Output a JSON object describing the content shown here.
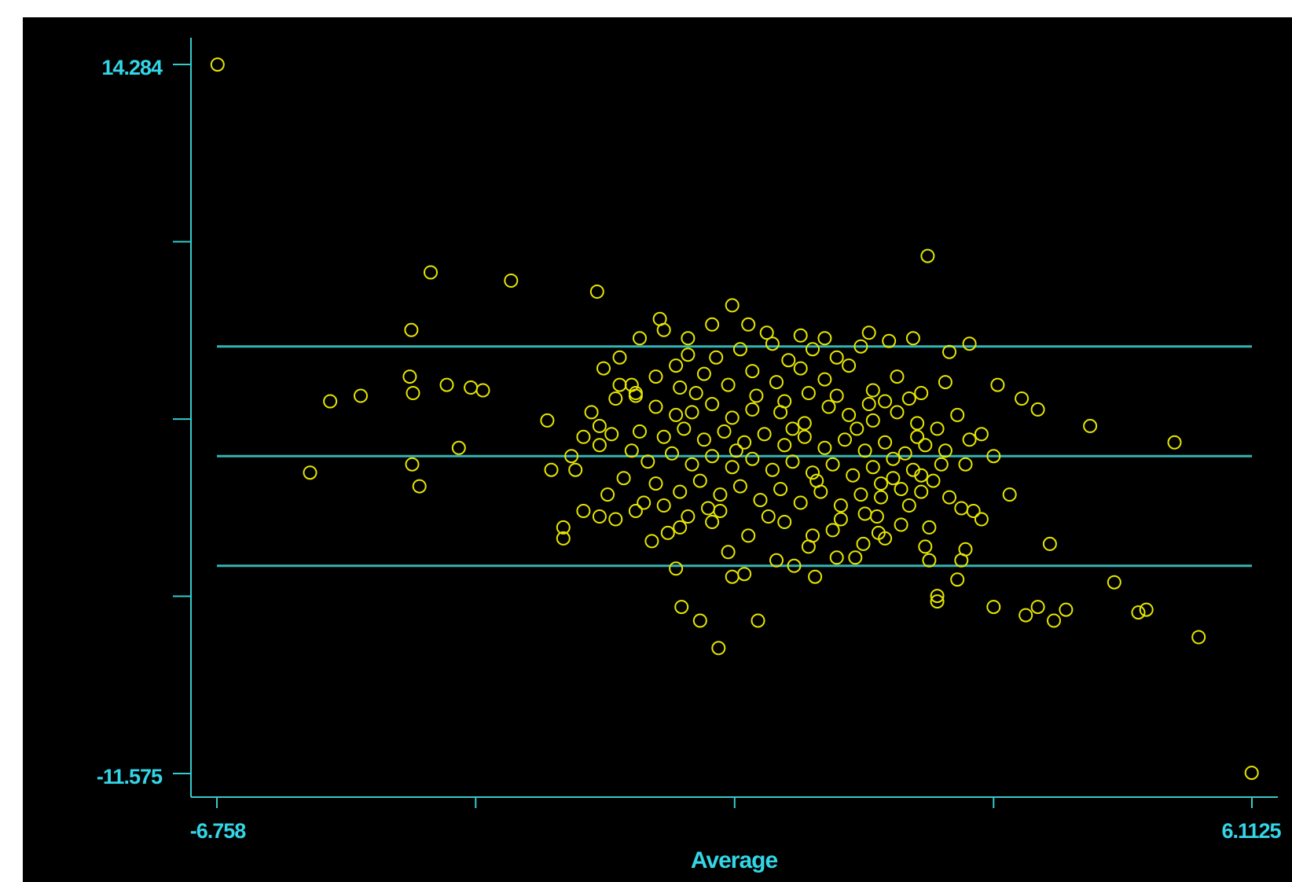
{
  "chart_data": {
    "type": "scatter",
    "title": "",
    "xlabel": "Average",
    "ylabel": "",
    "xlim": [
      -6.758,
      6.1125
    ],
    "ylim": [
      -11.575,
      14.284
    ],
    "x_tick_labels": [
      "-6.758",
      "6.1125"
    ],
    "y_tick_labels": [
      "14.284",
      "-11.575"
    ],
    "x_ticks": [
      -6.758,
      -3.54,
      -0.32,
      2.9,
      6.1125
    ],
    "y_ticks": [
      14.284,
      7.82,
      1.35,
      -5.11,
      -11.575
    ],
    "grid": false,
    "reference_lines": [
      {
        "name": "upper",
        "y": 4.0
      },
      {
        "name": "mean",
        "y": 0.0
      },
      {
        "name": "lower",
        "y": -4.0
      }
    ],
    "colors": {
      "background": "#000000",
      "axis": "#33cccc",
      "points": "#e6e600",
      "text": "#33d6e6"
    },
    "outliers": [
      {
        "x": -6.75,
        "y": 14.28
      },
      {
        "x": 6.11,
        "y": -11.55
      },
      {
        "x": 2.08,
        "y": 7.3
      }
    ],
    "points": [
      {
        "x": -4.1,
        "y": 6.7
      },
      {
        "x": -3.1,
        "y": 6.4
      },
      {
        "x": -4.34,
        "y": 4.6
      },
      {
        "x": -5.35,
        "y": 2.0
      },
      {
        "x": -4.97,
        "y": 2.2
      },
      {
        "x": -4.36,
        "y": 2.9
      },
      {
        "x": -4.32,
        "y": 2.3
      },
      {
        "x": -3.9,
        "y": 2.6
      },
      {
        "x": -3.6,
        "y": 2.5
      },
      {
        "x": -3.45,
        "y": 2.4
      },
      {
        "x": -3.75,
        "y": 0.3
      },
      {
        "x": -5.6,
        "y": -0.6
      },
      {
        "x": -4.33,
        "y": -0.3
      },
      {
        "x": -4.24,
        "y": -1.1
      },
      {
        "x": -2.03,
        "y": 6.0
      },
      {
        "x": -2.65,
        "y": 1.3
      },
      {
        "x": -2.0,
        "y": 1.1
      },
      {
        "x": -2.0,
        "y": 0.4
      },
      {
        "x": -1.8,
        "y": 2.1
      },
      {
        "x": -1.75,
        "y": 3.6
      },
      {
        "x": -1.95,
        "y": 3.2
      },
      {
        "x": -1.55,
        "y": 2.2
      },
      {
        "x": -2.35,
        "y": 0.0
      },
      {
        "x": -2.3,
        "y": -0.5
      },
      {
        "x": -1.75,
        "y": 2.6
      },
      {
        "x": -1.55,
        "y": 2.3
      },
      {
        "x": -2.1,
        "y": 1.6
      },
      {
        "x": -0.35,
        "y": 5.5
      },
      {
        "x": 0.15,
        "y": 4.1
      },
      {
        "x": 0.08,
        "y": 4.5
      },
      {
        "x": 0.5,
        "y": 4.4
      },
      {
        "x": 0.8,
        "y": 4.3
      },
      {
        "x": 1.35,
        "y": 4.5
      },
      {
        "x": 1.6,
        "y": 4.2
      },
      {
        "x": 1.9,
        "y": 4.3
      },
      {
        "x": 2.6,
        "y": 4.1
      },
      {
        "x": -0.6,
        "y": 4.8
      },
      {
        "x": -1.5,
        "y": 4.3
      },
      {
        "x": -0.15,
        "y": 4.8
      },
      {
        "x": -1.2,
        "y": 4.6
      },
      {
        "x": -1.25,
        "y": 5.0
      },
      {
        "x": -0.9,
        "y": 4.3
      },
      {
        "x": 2.35,
        "y": 3.8
      },
      {
        "x": 2.95,
        "y": 2.6
      },
      {
        "x": 3.25,
        "y": 2.1
      },
      {
        "x": 3.45,
        "y": 1.7
      },
      {
        "x": 4.1,
        "y": 1.1
      },
      {
        "x": 5.15,
        "y": 0.5
      },
      {
        "x": 2.75,
        "y": 0.8
      },
      {
        "x": 2.9,
        "y": 0.0
      },
      {
        "x": 3.1,
        "y": -1.4
      },
      {
        "x": 3.6,
        "y": -3.2
      },
      {
        "x": 4.4,
        "y": -4.6
      },
      {
        "x": 4.7,
        "y": -5.7
      },
      {
        "x": 5.45,
        "y": -6.6
      },
      {
        "x": 4.8,
        "y": -5.6
      },
      {
        "x": 3.8,
        "y": -5.6
      },
      {
        "x": 3.65,
        "y": -6.0
      },
      {
        "x": 3.45,
        "y": -5.5
      },
      {
        "x": 3.3,
        "y": -5.8
      },
      {
        "x": 2.9,
        "y": -5.5
      },
      {
        "x": 2.2,
        "y": -5.1
      },
      {
        "x": 2.2,
        "y": -5.3
      },
      {
        "x": 2.45,
        "y": -4.5
      },
      {
        "x": 2.1,
        "y": -3.8
      },
      {
        "x": 2.05,
        "y": -3.3
      },
      {
        "x": 2.55,
        "y": -3.4
      },
      {
        "x": 2.5,
        "y": -3.8
      },
      {
        "x": 2.75,
        "y": -2.3
      },
      {
        "x": -0.98,
        "y": -5.5
      },
      {
        "x": -0.75,
        "y": -6.0
      },
      {
        "x": -0.52,
        "y": -7.0
      },
      {
        "x": -0.03,
        "y": -6.0
      },
      {
        "x": -1.05,
        "y": -4.1
      },
      {
        "x": -0.35,
        "y": -4.4
      },
      {
        "x": -0.2,
        "y": -4.3
      },
      {
        "x": 0.2,
        "y": -3.8
      },
      {
        "x": 0.42,
        "y": -4.0
      },
      {
        "x": 0.68,
        "y": -4.4
      },
      {
        "x": 1.18,
        "y": -3.7
      },
      {
        "x": 1.47,
        "y": -2.8
      },
      {
        "x": 1.28,
        "y": -3.2
      },
      {
        "x": 1.55,
        "y": -3.0
      },
      {
        "x": 0.95,
        "y": -3.7
      },
      {
        "x": -0.4,
        "y": -3.5
      },
      {
        "x": 0.6,
        "y": -3.3
      },
      {
        "x": -1.35,
        "y": -3.1
      },
      {
        "x": -1.8,
        "y": -2.3
      },
      {
        "x": -2.0,
        "y": -2.2
      },
      {
        "x": -2.2,
        "y": -2.0
      },
      {
        "x": -2.45,
        "y": -2.6
      },
      {
        "x": -2.45,
        "y": -3.0
      },
      {
        "x": -1.55,
        "y": -2.0
      },
      {
        "x": -1.0,
        "y": -2.6
      },
      {
        "x": -0.6,
        "y": -2.4
      },
      {
        "x": -0.9,
        "y": -2.2
      },
      {
        "x": -0.5,
        "y": -2.0
      },
      {
        "x": 0.3,
        "y": -2.4
      },
      {
        "x": 0.9,
        "y": -2.7
      },
      {
        "x": 1.45,
        "y": -2.2
      },
      {
        "x": 1.75,
        "y": -2.5
      },
      {
        "x": 2.1,
        "y": -2.6
      },
      {
        "x": 1.5,
        "y": -1.5
      },
      {
        "x": 1.85,
        "y": -1.8
      },
      {
        "x": 2.0,
        "y": -1.3
      },
      {
        "x": 2.35,
        "y": -1.5
      },
      {
        "x": 2.5,
        "y": -1.9
      },
      {
        "x": 2.65,
        "y": -2.0
      },
      {
        "x": -1.3,
        "y": 1.8
      },
      {
        "x": -1.05,
        "y": 1.5
      },
      {
        "x": -0.85,
        "y": 1.6
      },
      {
        "x": -0.6,
        "y": 1.9
      },
      {
        "x": -0.35,
        "y": 1.4
      },
      {
        "x": -0.1,
        "y": 1.7
      },
      {
        "x": 0.25,
        "y": 1.6
      },
      {
        "x": 0.55,
        "y": 1.2
      },
      {
        "x": 0.85,
        "y": 1.8
      },
      {
        "x": 1.1,
        "y": 1.5
      },
      {
        "x": 1.4,
        "y": 1.3
      },
      {
        "x": 1.7,
        "y": 1.6
      },
      {
        "x": 1.95,
        "y": 1.2
      },
      {
        "x": 2.2,
        "y": 1.0
      },
      {
        "x": -1.5,
        "y": 0.9
      },
      {
        "x": -1.2,
        "y": 0.7
      },
      {
        "x": -0.95,
        "y": 1.0
      },
      {
        "x": -0.7,
        "y": 0.6
      },
      {
        "x": -0.45,
        "y": 0.9
      },
      {
        "x": -0.2,
        "y": 0.5
      },
      {
        "x": 0.05,
        "y": 0.8
      },
      {
        "x": 0.3,
        "y": 0.4
      },
      {
        "x": 0.55,
        "y": 0.7
      },
      {
        "x": 0.8,
        "y": 0.3
      },
      {
        "x": 1.05,
        "y": 0.6
      },
      {
        "x": 1.3,
        "y": 0.2
      },
      {
        "x": 1.55,
        "y": 0.5
      },
      {
        "x": 1.8,
        "y": 0.1
      },
      {
        "x": 2.05,
        "y": 0.4
      },
      {
        "x": 2.3,
        "y": 0.2
      },
      {
        "x": -1.4,
        "y": -0.2
      },
      {
        "x": -1.1,
        "y": 0.1
      },
      {
        "x": -0.85,
        "y": -0.3
      },
      {
        "x": -0.6,
        "y": 0.0
      },
      {
        "x": -0.35,
        "y": -0.4
      },
      {
        "x": -0.1,
        "y": -0.1
      },
      {
        "x": 0.15,
        "y": -0.5
      },
      {
        "x": 0.4,
        "y": -0.2
      },
      {
        "x": 0.65,
        "y": -0.6
      },
      {
        "x": 0.9,
        "y": -0.3
      },
      {
        "x": 1.15,
        "y": -0.7
      },
      {
        "x": 1.4,
        "y": -0.4
      },
      {
        "x": 1.65,
        "y": -0.8
      },
      {
        "x": 1.9,
        "y": -0.5
      },
      {
        "x": 2.15,
        "y": -0.9
      },
      {
        "x": -1.3,
        "y": -1.0
      },
      {
        "x": -1.0,
        "y": -1.3
      },
      {
        "x": -0.75,
        "y": -0.9
      },
      {
        "x": -0.5,
        "y": -1.4
      },
      {
        "x": -0.25,
        "y": -1.1
      },
      {
        "x": 0.0,
        "y": -1.6
      },
      {
        "x": 0.25,
        "y": -1.2
      },
      {
        "x": 0.5,
        "y": -1.7
      },
      {
        "x": 0.75,
        "y": -1.3
      },
      {
        "x": 1.0,
        "y": -1.8
      },
      {
        "x": 1.25,
        "y": -1.4
      },
      {
        "x": 1.5,
        "y": -1.0
      },
      {
        "x": 1.75,
        "y": -1.2
      },
      {
        "x": 2.0,
        "y": -0.7
      },
      {
        "x": -1.6,
        "y": 2.6
      },
      {
        "x": -1.3,
        "y": 2.9
      },
      {
        "x": -1.0,
        "y": 2.5
      },
      {
        "x": -0.7,
        "y": 3.0
      },
      {
        "x": -0.4,
        "y": 2.6
      },
      {
        "x": -0.1,
        "y": 3.1
      },
      {
        "x": 0.2,
        "y": 2.7
      },
      {
        "x": 0.5,
        "y": 3.2
      },
      {
        "x": 0.8,
        "y": 2.8
      },
      {
        "x": 1.1,
        "y": 3.3
      },
      {
        "x": 1.4,
        "y": 2.4
      },
      {
        "x": 1.7,
        "y": 2.9
      },
      {
        "x": 2.0,
        "y": 2.3
      },
      {
        "x": 2.3,
        "y": 2.7
      },
      {
        "x": -0.55,
        "y": 3.6
      },
      {
        "x": -0.25,
        "y": 3.9
      },
      {
        "x": 0.35,
        "y": 3.5
      },
      {
        "x": 0.65,
        "y": 3.9
      },
      {
        "x": 0.95,
        "y": 3.6
      },
      {
        "x": 1.25,
        "y": 4.0
      },
      {
        "x": 2.45,
        "y": 1.5
      },
      {
        "x": 2.55,
        "y": -0.3
      },
      {
        "x": 2.6,
        "y": 0.6
      },
      {
        "x": -1.45,
        "y": -1.7
      },
      {
        "x": -0.15,
        "y": -2.9
      },
      {
        "x": 0.1,
        "y": -2.2
      },
      {
        "x": 0.65,
        "y": -2.9
      },
      {
        "x": 1.3,
        "y": -2.1
      },
      {
        "x": 1.0,
        "y": -2.3
      },
      {
        "x": -1.15,
        "y": -2.8
      },
      {
        "x": -0.65,
        "y": -1.9
      },
      {
        "x": -0.3,
        "y": 0.2
      },
      {
        "x": 0.4,
        "y": 1.0
      },
      {
        "x": 0.7,
        "y": -0.9
      },
      {
        "x": 1.2,
        "y": 1.0
      },
      {
        "x": 1.55,
        "y": 2.0
      },
      {
        "x": 1.85,
        "y": 2.1
      },
      {
        "x": -0.05,
        "y": 2.2
      },
      {
        "x": 0.3,
        "y": 2.0
      },
      {
        "x": 0.6,
        "y": 2.3
      },
      {
        "x": 0.95,
        "y": 2.2
      },
      {
        "x": 1.35,
        "y": 1.9
      },
      {
        "x": 1.65,
        "y": -0.1
      },
      {
        "x": 1.95,
        "y": 0.7
      },
      {
        "x": 2.25,
        "y": -0.3
      },
      {
        "x": -0.8,
        "y": 2.3
      },
      {
        "x": -1.05,
        "y": 3.3
      },
      {
        "x": -0.9,
        "y": 3.7
      },
      {
        "x": -1.6,
        "y": 0.2
      },
      {
        "x": -1.7,
        "y": -0.8
      },
      {
        "x": -1.85,
        "y": 0.8
      },
      {
        "x": -2.2,
        "y": 0.7
      },
      {
        "x": -2.6,
        "y": -0.5
      },
      {
        "x": -1.9,
        "y": -1.4
      },
      {
        "x": -1.2,
        "y": -1.8
      }
    ]
  }
}
